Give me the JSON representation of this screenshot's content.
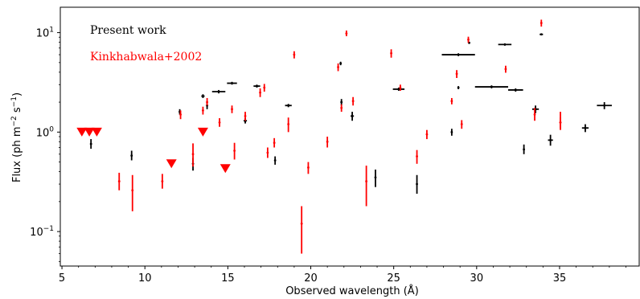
{
  "chart_data": {
    "type": "scatter",
    "xlabel": "Observed wavelength (Å)",
    "ylabel": "Flux (ph m⁻² s⁻¹)",
    "ylabel_main": "Flux (ph m",
    "ylabel_exp1": "−2",
    "ylabel_mid": " s",
    "ylabel_exp2": "−1",
    "ylabel_end": ")",
    "xlim": [
      4.9,
      39.8
    ],
    "ylim": [
      0.045,
      18.0
    ],
    "yscale": "log",
    "xticks": [
      5,
      10,
      15,
      20,
      25,
      30,
      35
    ],
    "yticks": [
      {
        "value": 0.1,
        "base": "10",
        "exp": "−1"
      },
      {
        "value": 1,
        "base": "10",
        "exp": "0"
      },
      {
        "value": 10,
        "base": "10",
        "exp": "1"
      }
    ],
    "legend": {
      "position": "top-left",
      "entries": [
        {
          "label": "Present work",
          "color": "#000000"
        },
        {
          "label": "Kinkhabwala+2002",
          "color": "#ff0000"
        }
      ]
    },
    "series": [
      {
        "name": "Present work",
        "color": "#000000",
        "points": [
          {
            "x": 6.75,
            "y": 0.76,
            "xerr": 0.05,
            "ylo": 0.68,
            "yhi": 0.85
          },
          {
            "x": 9.2,
            "y": 0.58,
            "xerr": 0.05,
            "ylo": 0.52,
            "yhi": 0.65
          },
          {
            "x": 12.1,
            "y": 1.6,
            "xerr": 0.05,
            "ylo": 1.5,
            "yhi": 1.7
          },
          {
            "x": 12.9,
            "y": 0.48,
            "xerr": 0.03,
            "ylo": 0.41,
            "yhi": 0.55
          },
          {
            "x": 13.5,
            "y": 2.3,
            "xerr": 0.1,
            "ylo": 2.2,
            "yhi": 2.4
          },
          {
            "x": 13.75,
            "y": 1.85,
            "xerr": 0.05,
            "ylo": 1.7,
            "yhi": 2.0
          },
          {
            "x": 14.45,
            "y": 2.55,
            "xerr": 0.4,
            "ylo": 2.45,
            "yhi": 2.65
          },
          {
            "x": 15.25,
            "y": 3.1,
            "xerr": 0.3,
            "ylo": 3.0,
            "yhi": 3.2
          },
          {
            "x": 16.05,
            "y": 1.3,
            "xerr": 0.1,
            "ylo": 1.22,
            "yhi": 1.38
          },
          {
            "x": 16.75,
            "y": 2.9,
            "xerr": 0.2,
            "ylo": 2.8,
            "yhi": 3.0
          },
          {
            "x": 17.85,
            "y": 0.52,
            "xerr": 0.03,
            "ylo": 0.47,
            "yhi": 0.57
          },
          {
            "x": 18.65,
            "y": 1.85,
            "xerr": 0.2,
            "ylo": 1.78,
            "yhi": 1.92
          },
          {
            "x": 21.8,
            "y": 4.9,
            "xerr": 0.05,
            "ylo": 4.7,
            "yhi": 5.1
          },
          {
            "x": 21.85,
            "y": 2.0,
            "xerr": 0.05,
            "ylo": 1.85,
            "yhi": 2.15
          },
          {
            "x": 22.5,
            "y": 1.45,
            "xerr": 0.1,
            "ylo": 1.3,
            "yhi": 1.6
          },
          {
            "x": 23.9,
            "y": 0.35,
            "xerr": 0.0,
            "ylo": 0.28,
            "yhi": 0.42
          },
          {
            "x": 25.3,
            "y": 2.7,
            "xerr": 0.35,
            "ylo": 2.6,
            "yhi": 2.8
          },
          {
            "x": 26.4,
            "y": 0.3,
            "xerr": 0.0,
            "ylo": 0.24,
            "yhi": 0.37
          },
          {
            "x": 28.5,
            "y": 1.0,
            "xerr": 0.05,
            "ylo": 0.92,
            "yhi": 1.08
          },
          {
            "x": 28.9,
            "y": 6.0,
            "xerr": 1.0,
            "ylo": 5.8,
            "yhi": 6.2
          },
          {
            "x": 28.9,
            "y": 2.8,
            "xerr": 0.05,
            "ylo": 2.7,
            "yhi": 2.9
          },
          {
            "x": 29.55,
            "y": 7.9,
            "xerr": 0.05,
            "ylo": 7.7,
            "yhi": 8.1
          },
          {
            "x": 30.9,
            "y": 2.85,
            "xerr": 1.0,
            "ylo": 2.75,
            "yhi": 2.95
          },
          {
            "x": 31.7,
            "y": 7.6,
            "xerr": 0.4,
            "ylo": 7.4,
            "yhi": 7.8
          },
          {
            "x": 32.35,
            "y": 2.65,
            "xerr": 0.45,
            "ylo": 2.55,
            "yhi": 2.75
          },
          {
            "x": 32.85,
            "y": 0.67,
            "xerr": 0.03,
            "ylo": 0.6,
            "yhi": 0.75
          },
          {
            "x": 33.55,
            "y": 1.7,
            "xerr": 0.2,
            "ylo": 1.55,
            "yhi": 1.85
          },
          {
            "x": 33.9,
            "y": 9.6,
            "xerr": 0.1,
            "ylo": 9.4,
            "yhi": 9.8
          },
          {
            "x": 34.45,
            "y": 0.83,
            "xerr": 0.15,
            "ylo": 0.73,
            "yhi": 0.94
          },
          {
            "x": 36.55,
            "y": 1.1,
            "xerr": 0.2,
            "ylo": 1.0,
            "yhi": 1.2
          },
          {
            "x": 37.7,
            "y": 1.85,
            "xerr": 0.45,
            "ylo": 1.7,
            "yhi": 2.0
          }
        ]
      },
      {
        "name": "Kinkhabwala+2002",
        "color": "#ff0000",
        "points": [
          {
            "x": 8.45,
            "y": 0.32,
            "xerr": 0.0,
            "ylo": 0.26,
            "yhi": 0.39
          },
          {
            "x": 9.25,
            "y": 0.26,
            "xerr": 0.0,
            "ylo": 0.16,
            "yhi": 0.37
          },
          {
            "x": 11.05,
            "y": 0.32,
            "xerr": 0.0,
            "ylo": 0.27,
            "yhi": 0.38
          },
          {
            "x": 12.15,
            "y": 1.5,
            "xerr": 0.0,
            "ylo": 1.35,
            "yhi": 1.65
          },
          {
            "x": 12.9,
            "y": 0.6,
            "xerr": 0.0,
            "ylo": 0.45,
            "yhi": 0.77
          },
          {
            "x": 13.5,
            "y": 1.65,
            "xerr": 0.0,
            "ylo": 1.5,
            "yhi": 1.8
          },
          {
            "x": 13.75,
            "y": 2.0,
            "xerr": 0.0,
            "ylo": 1.85,
            "yhi": 2.2
          },
          {
            "x": 14.5,
            "y": 1.25,
            "xerr": 0.0,
            "ylo": 1.13,
            "yhi": 1.38
          },
          {
            "x": 15.25,
            "y": 1.7,
            "xerr": 0.0,
            "ylo": 1.55,
            "yhi": 1.85
          },
          {
            "x": 15.4,
            "y": 0.65,
            "xerr": 0.0,
            "ylo": 0.53,
            "yhi": 0.78
          },
          {
            "x": 16.05,
            "y": 1.45,
            "xerr": 0.0,
            "ylo": 1.3,
            "yhi": 1.6
          },
          {
            "x": 16.95,
            "y": 2.5,
            "xerr": 0.0,
            "ylo": 2.25,
            "yhi": 2.75
          },
          {
            "x": 17.2,
            "y": 2.8,
            "xerr": 0.05,
            "ylo": 2.55,
            "yhi": 3.05
          },
          {
            "x": 17.4,
            "y": 0.62,
            "xerr": 0.0,
            "ylo": 0.55,
            "yhi": 0.7
          },
          {
            "x": 17.8,
            "y": 0.78,
            "xerr": 0.05,
            "ylo": 0.7,
            "yhi": 0.87
          },
          {
            "x": 18.65,
            "y": 1.2,
            "xerr": 0.0,
            "ylo": 1.0,
            "yhi": 1.4
          },
          {
            "x": 19.0,
            "y": 6.0,
            "xerr": 0.05,
            "ylo": 5.5,
            "yhi": 6.5
          },
          {
            "x": 19.45,
            "y": 0.12,
            "xerr": 0.0,
            "ylo": 0.06,
            "yhi": 0.18
          },
          {
            "x": 19.85,
            "y": 0.44,
            "xerr": 0.0,
            "ylo": 0.38,
            "yhi": 0.5
          },
          {
            "x": 21.0,
            "y": 0.8,
            "xerr": 0.0,
            "ylo": 0.7,
            "yhi": 0.9
          },
          {
            "x": 21.65,
            "y": 4.5,
            "xerr": 0.05,
            "ylo": 4.1,
            "yhi": 4.9
          },
          {
            "x": 21.85,
            "y": 1.75,
            "xerr": 0.0,
            "ylo": 1.6,
            "yhi": 1.9
          },
          {
            "x": 22.15,
            "y": 9.8,
            "xerr": 0.05,
            "ylo": 9.2,
            "yhi": 10.5
          },
          {
            "x": 22.55,
            "y": 2.05,
            "xerr": 0.0,
            "ylo": 1.85,
            "yhi": 2.25
          },
          {
            "x": 23.35,
            "y": 0.32,
            "xerr": 0.0,
            "ylo": 0.18,
            "yhi": 0.46
          },
          {
            "x": 24.85,
            "y": 6.2,
            "xerr": 0.05,
            "ylo": 5.6,
            "yhi": 6.8
          },
          {
            "x": 25.4,
            "y": 2.8,
            "xerr": 0.05,
            "ylo": 2.6,
            "yhi": 3.0
          },
          {
            "x": 26.4,
            "y": 0.57,
            "xerr": 0.05,
            "ylo": 0.48,
            "yhi": 0.66
          },
          {
            "x": 27.0,
            "y": 0.95,
            "xerr": 0.0,
            "ylo": 0.85,
            "yhi": 1.05
          },
          {
            "x": 28.5,
            "y": 2.05,
            "xerr": 0.05,
            "ylo": 1.9,
            "yhi": 2.2
          },
          {
            "x": 28.8,
            "y": 3.85,
            "xerr": 0.05,
            "ylo": 3.5,
            "yhi": 4.2
          },
          {
            "x": 29.1,
            "y": 1.2,
            "xerr": 0.0,
            "ylo": 1.08,
            "yhi": 1.32
          },
          {
            "x": 29.5,
            "y": 8.5,
            "xerr": 0.05,
            "ylo": 7.9,
            "yhi": 9.1
          },
          {
            "x": 31.75,
            "y": 4.3,
            "xerr": 0.0,
            "ylo": 3.95,
            "yhi": 4.65
          },
          {
            "x": 33.5,
            "y": 1.5,
            "xerr": 0.0,
            "ylo": 1.3,
            "yhi": 1.75
          },
          {
            "x": 33.9,
            "y": 12.5,
            "xerr": 0.05,
            "ylo": 11.5,
            "yhi": 13.5
          },
          {
            "x": 35.05,
            "y": 1.25,
            "xerr": 0.0,
            "ylo": 1.1,
            "yhi": 1.4
          },
          {
            "x": 35.05,
            "y": 1.25,
            "xerr": 0.0,
            "ylo": 1.05,
            "yhi": 1.6
          }
        ],
        "upper_limits": [
          {
            "x": 6.2,
            "y": 1.0
          },
          {
            "x": 6.65,
            "y": 1.0
          },
          {
            "x": 7.1,
            "y": 1.0
          },
          {
            "x": 11.6,
            "y": 0.48
          },
          {
            "x": 13.5,
            "y": 1.0
          },
          {
            "x": 14.85,
            "y": 0.43
          }
        ]
      }
    ]
  }
}
